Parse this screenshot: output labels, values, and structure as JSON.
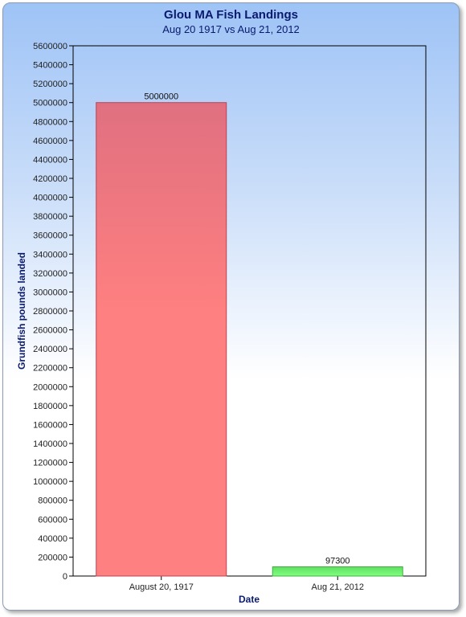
{
  "chart_data": {
    "type": "bar",
    "title": "Glou MA Fish Landings",
    "subtitle": "Aug 20 1917 vs Aug 21, 2012",
    "xlabel": "Date",
    "ylabel": "Grundfish pounds landed",
    "categories": [
      "August 20, 1917",
      "Aug 21, 2012"
    ],
    "values": [
      5000000,
      97300
    ],
    "data_labels": [
      "5000000",
      "97300"
    ],
    "bar_colors": [
      "#ff8080",
      "#80ff80"
    ],
    "ylim": [
      0,
      5600000
    ],
    "ytick_step": 200000,
    "grid": false,
    "legend": "none"
  }
}
